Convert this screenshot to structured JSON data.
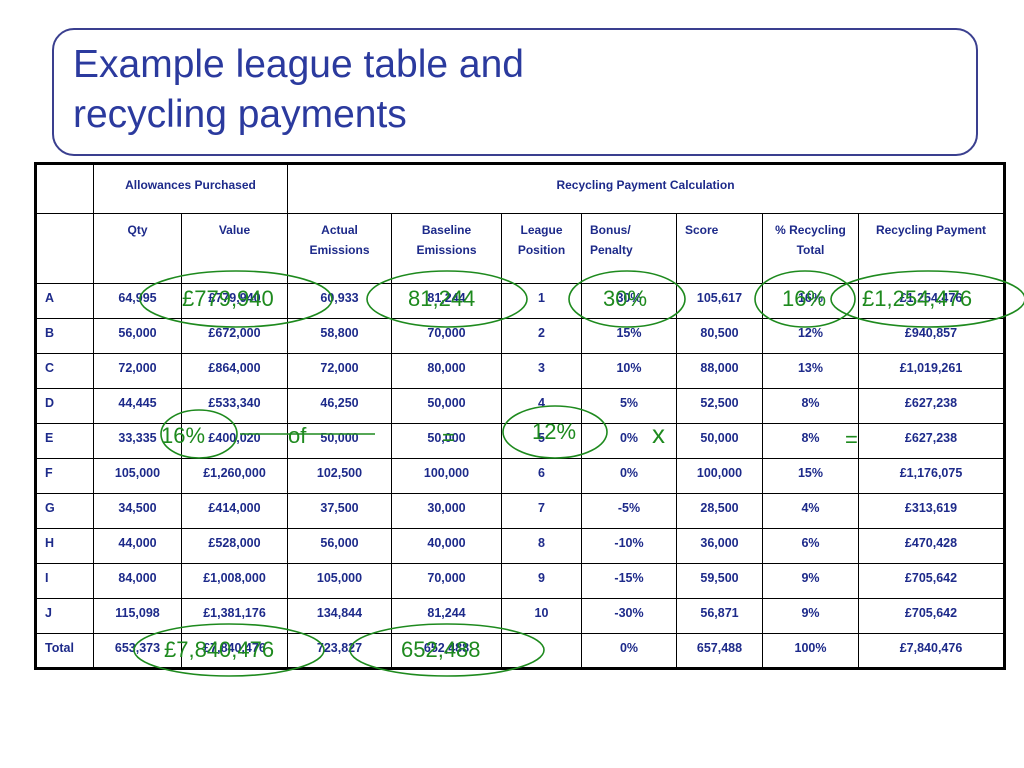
{
  "title": {
    "line1": "Example league table and",
    "line2": "recycling payments"
  },
  "table": {
    "group_headers": {
      "allowances": "Allowances Purchased",
      "recycling": "Recycling Payment Calculation"
    },
    "columns": {
      "qty": "Qty",
      "value": "Value",
      "actual": "Actual Emissions",
      "baseline": "Baseline Emissions",
      "league": "League Position",
      "bonus": "Bonus/ Penalty",
      "score": "Score",
      "pct": "% Recycling Total",
      "payment": "Recycling Payment"
    },
    "rows": [
      {
        "label": "A",
        "qty": "64,995",
        "value": "£779,940",
        "actual": "60,933",
        "baseline": "81,244",
        "league": "1",
        "bonus": "30%",
        "score": "105,617",
        "pct": "16%",
        "payment": "£1,254,476"
      },
      {
        "label": "B",
        "qty": "56,000",
        "value": "£672,000",
        "actual": "58,800",
        "baseline": "70,000",
        "league": "2",
        "bonus": "15%",
        "score": "80,500",
        "pct": "12%",
        "payment": "£940,857"
      },
      {
        "label": "C",
        "qty": "72,000",
        "value": "£864,000",
        "actual": "72,000",
        "baseline": "80,000",
        "league": "3",
        "bonus": "10%",
        "score": "88,000",
        "pct": "13%",
        "payment": "£1,019,261"
      },
      {
        "label": "D",
        "qty": "44,445",
        "value": "£533,340",
        "actual": "46,250",
        "baseline": "50,000",
        "league": "4",
        "bonus": "5%",
        "score": "52,500",
        "pct": "8%",
        "payment": "£627,238"
      },
      {
        "label": "E",
        "qty": "33,335",
        "value": "£400,020",
        "actual": "50,000",
        "baseline": "50,000",
        "league": "5",
        "bonus": "0%",
        "score": "50,000",
        "pct": "8%",
        "payment": "£627,238"
      },
      {
        "label": "F",
        "qty": "105,000",
        "value": "£1,260,000",
        "actual": "102,500",
        "baseline": "100,000",
        "league": "6",
        "bonus": "0%",
        "score": "100,000",
        "pct": "15%",
        "payment": "£1,176,075"
      },
      {
        "label": "G",
        "qty": "34,500",
        "value": "£414,000",
        "actual": "37,500",
        "baseline": "30,000",
        "league": "7",
        "bonus": "-5%",
        "score": "28,500",
        "pct": "4%",
        "payment": "£313,619"
      },
      {
        "label": "H",
        "qty": "44,000",
        "value": "£528,000",
        "actual": "56,000",
        "baseline": "40,000",
        "league": "8",
        "bonus": "-10%",
        "score": "36,000",
        "pct": "6%",
        "payment": "£470,428"
      },
      {
        "label": "I",
        "qty": "84,000",
        "value": "£1,008,000",
        "actual": "105,000",
        "baseline": "70,000",
        "league": "9",
        "bonus": "-15%",
        "score": "59,500",
        "pct": "9%",
        "payment": "£705,642"
      },
      {
        "label": "J",
        "qty": "115,098",
        "value": "£1,381,176",
        "actual": "134,844",
        "baseline": "81,244",
        "league": "10",
        "bonus": "-30%",
        "score": "56,871",
        "pct": "9%",
        "payment": "£705,642"
      },
      {
        "label": "Total",
        "qty": "653,373",
        "value": "£7,840,476",
        "actual": "723,827",
        "baseline": "652,488",
        "league": "",
        "bonus": "0%",
        "score": "657,488",
        "pct": "100%",
        "payment": "£7,840,476"
      }
    ]
  },
  "annotations": {
    "a_value": "£779,940",
    "a_baseline": "81,244",
    "a_bonus": "30%",
    "a_pct": "16%",
    "a_payment": "£1,254,476",
    "e_pct": "16%",
    "e_of": "of",
    "e_bonus": "12%",
    "e_times": "x",
    "e_equals": "=",
    "total_value": "£7,840,476",
    "total_baseline": "652,488"
  },
  "colors": {
    "title": "#2b3a9e",
    "table_text": "#1d2a8a",
    "annotation": "#1e8a1e",
    "border": "#3a3f8f"
  }
}
